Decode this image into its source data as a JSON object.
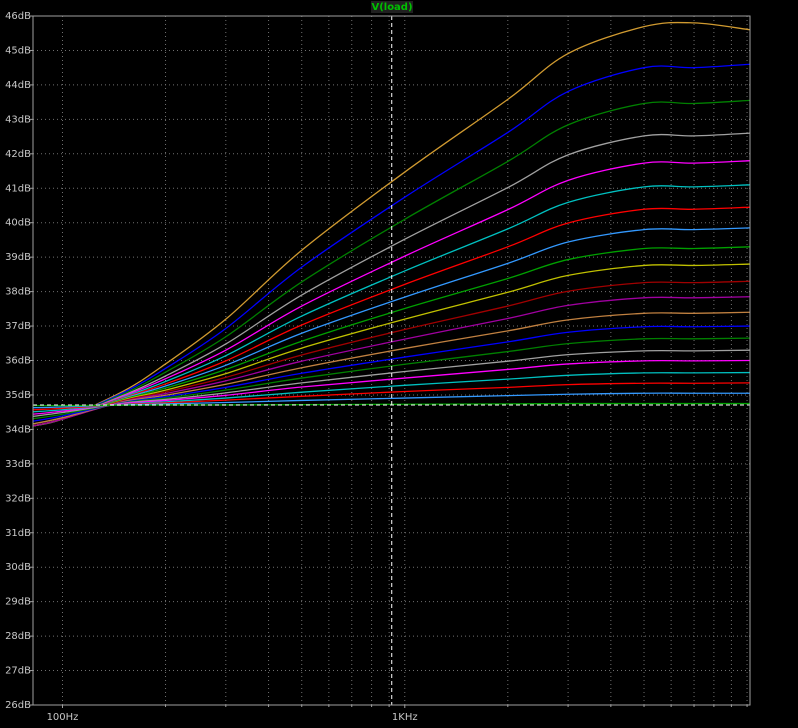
{
  "chart_data": {
    "type": "line",
    "title": "V(load)",
    "title_color": "#00c000",
    "xscale": "log",
    "grid": true,
    "xlim": [
      82,
      10200
    ],
    "ylim": [
      26,
      46
    ],
    "xticks": [
      {
        "value": 100,
        "label": "100Hz"
      },
      {
        "value": 1000,
        "label": "1KHz"
      }
    ],
    "xgrid": [
      200,
      300,
      400,
      500,
      600,
      700,
      800,
      900,
      2000,
      3000,
      4000,
      5000,
      6000,
      7000,
      8000,
      9000,
      10000
    ],
    "yticks": [
      {
        "value": 26,
        "label": "26dB"
      },
      {
        "value": 27,
        "label": "27dB"
      },
      {
        "value": 28,
        "label": "28dB"
      },
      {
        "value": 29,
        "label": "29dB"
      },
      {
        "value": 30,
        "label": "30dB"
      },
      {
        "value": 31,
        "label": "31dB"
      },
      {
        "value": 32,
        "label": "32dB"
      },
      {
        "value": 33,
        "label": "33dB"
      },
      {
        "value": 34,
        "label": "34dB"
      },
      {
        "value": 35,
        "label": "35dB"
      },
      {
        "value": 36,
        "label": "36dB"
      },
      {
        "value": 37,
        "label": "37dB"
      },
      {
        "value": 38,
        "label": "38dB"
      },
      {
        "value": 39,
        "label": "39dB"
      },
      {
        "value": 40,
        "label": "40dB"
      },
      {
        "value": 41,
        "label": "41dB"
      },
      {
        "value": 42,
        "label": "42dB"
      },
      {
        "value": 43,
        "label": "43dB"
      },
      {
        "value": 44,
        "label": "44dB"
      },
      {
        "value": 45,
        "label": "45dB"
      },
      {
        "value": 46,
        "label": "46dB"
      }
    ],
    "cursor": {
      "x": 916,
      "y": 34.71
    },
    "x": [
      82,
      100,
      150,
      200,
      300,
      500,
      1000,
      2000,
      3000,
      5000,
      7000,
      10200
    ],
    "series": [
      {
        "color": "#d09a30",
        "values": [
          34.1,
          34.3,
          35.1,
          35.9,
          37.2,
          39.2,
          41.47,
          43.58,
          44.91,
          45.69,
          45.8,
          45.6
        ]
      },
      {
        "color": "#0000ff",
        "values": [
          34.1,
          34.3,
          35.06,
          35.77,
          36.93,
          38.71,
          40.74,
          42.62,
          43.81,
          44.5,
          44.5,
          44.6
        ]
      },
      {
        "color": "#008000",
        "values": [
          34.1,
          34.3,
          35.02,
          35.66,
          36.69,
          38.28,
          40.1,
          41.78,
          42.84,
          43.46,
          43.46,
          43.55
        ]
      },
      {
        "color": "#a0a0a0",
        "values": [
          34.1,
          34.3,
          34.98,
          35.55,
          36.48,
          37.9,
          39.52,
          41.02,
          41.97,
          42.52,
          42.52,
          42.6
        ]
      },
      {
        "color": "#ff00ff",
        "values": [
          34.1,
          34.3,
          34.96,
          35.47,
          36.3,
          37.58,
          39.03,
          40.38,
          41.23,
          41.73,
          41.73,
          41.8
        ]
      },
      {
        "color": "#00c0c0",
        "values": [
          34.1,
          34.3,
          34.93,
          35.39,
          36.14,
          37.29,
          38.6,
          39.82,
          40.59,
          41.04,
          41.04,
          41.1
        ]
      },
      {
        "color": "#ff0000",
        "values": [
          34.1,
          34.3,
          34.91,
          35.32,
          35.99,
          37.03,
          38.21,
          39.3,
          39.99,
          40.39,
          40.39,
          40.45
        ]
      },
      {
        "color": "#3399ff",
        "values": [
          34.1,
          34.3,
          34.89,
          35.26,
          35.86,
          36.79,
          37.84,
          38.82,
          39.44,
          39.8,
          39.8,
          39.85
        ]
      },
      {
        "color": "#00a000",
        "values": [
          34.1,
          34.3,
          34.87,
          35.2,
          35.74,
          36.56,
          37.51,
          38.38,
          38.93,
          39.25,
          39.25,
          39.3
        ]
      },
      {
        "color": "#c0c000",
        "values": [
          34.1,
          34.3,
          34.85,
          35.14,
          35.62,
          36.36,
          37.2,
          37.98,
          38.47,
          38.76,
          38.76,
          38.8
        ]
      },
      {
        "color": "#a00000",
        "values": [
          34.1,
          34.3,
          34.83,
          35.09,
          35.51,
          36.16,
          36.9,
          37.58,
          38.01,
          38.26,
          38.26,
          38.3
        ]
      },
      {
        "color": "#a000a0",
        "values": [
          34.1,
          34.3,
          34.81,
          35.04,
          35.41,
          35.98,
          36.62,
          37.22,
          37.6,
          37.82,
          37.82,
          37.85
        ]
      },
      {
        "color": "#c08040",
        "values": [
          34.16,
          34.34,
          34.8,
          34.99,
          35.31,
          35.79,
          36.35,
          36.86,
          37.18,
          37.37,
          37.37,
          37.4
        ]
      },
      {
        "color": "#0000ff",
        "values": [
          34.24,
          34.39,
          34.78,
          34.95,
          35.22,
          35.63,
          36.1,
          36.54,
          36.82,
          36.98,
          36.98,
          37.0
        ]
      },
      {
        "color": "#008000",
        "values": [
          34.31,
          34.44,
          34.77,
          34.91,
          35.14,
          35.49,
          35.89,
          36.26,
          36.49,
          36.63,
          36.63,
          36.65
        ]
      },
      {
        "color": "#a0a0a0",
        "values": [
          34.38,
          34.49,
          34.76,
          34.87,
          35.06,
          35.35,
          35.68,
          35.98,
          36.17,
          36.28,
          36.28,
          36.3
        ]
      },
      {
        "color": "#ff00ff",
        "values": [
          34.44,
          34.53,
          34.75,
          34.84,
          34.99,
          35.23,
          35.49,
          35.74,
          35.9,
          35.99,
          35.99,
          36.0
        ]
      },
      {
        "color": "#00c0c0",
        "values": [
          34.51,
          34.57,
          34.73,
          34.8,
          34.91,
          35.08,
          35.28,
          35.46,
          35.57,
          35.64,
          35.64,
          35.65
        ]
      },
      {
        "color": "#ff0000",
        "values": [
          34.57,
          34.61,
          34.72,
          34.77,
          34.85,
          34.96,
          35.1,
          35.22,
          35.3,
          35.34,
          35.34,
          35.35
        ]
      },
      {
        "color": "#3399ff",
        "values": [
          34.63,
          34.65,
          34.71,
          34.74,
          34.78,
          34.84,
          34.91,
          34.98,
          35.02,
          35.05,
          35.05,
          35.05
        ]
      },
      {
        "color": "#00a000",
        "values": [
          34.69,
          34.69,
          34.7,
          34.71,
          34.71,
          34.72,
          34.73,
          34.74,
          34.75,
          34.75,
          34.75,
          34.75
        ]
      }
    ]
  }
}
